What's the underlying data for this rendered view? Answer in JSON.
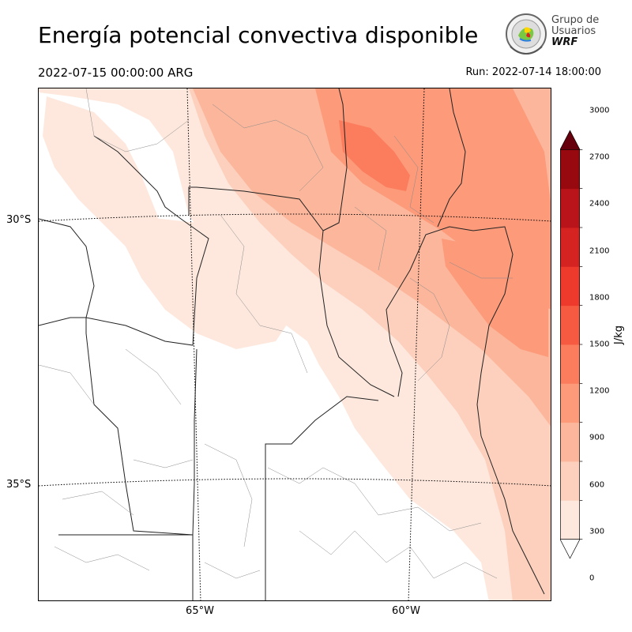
{
  "title": "Energía potencial convectiva disponible",
  "valid_time": "2022-07-15 00:00:00 ARG",
  "run_label": "Run: 2022-07-14 18:00:00",
  "logo": {
    "line1": "Grupo de",
    "line2": "Usuarios",
    "line3": "WRF"
  },
  "axes": {
    "lat_ticks": [
      {
        "label": "30°S",
        "value": -30
      },
      {
        "label": "35°S",
        "value": -35
      }
    ],
    "lon_ticks": [
      {
        "label": "65°W",
        "value": -65
      },
      {
        "label": "60°W",
        "value": -60
      }
    ]
  },
  "colorbar": {
    "unit": "J/kg",
    "ticks": [
      "0",
      "300",
      "600",
      "900",
      "1200",
      "1500",
      "1800",
      "2100",
      "2400",
      "2700",
      "3000"
    ],
    "colors": [
      "#fee8dd",
      "#fcd0bd",
      "#fcb69b",
      "#fc9a7a",
      "#fb7d5d",
      "#f65a40",
      "#ee3a2c",
      "#d52321",
      "#b81419",
      "#97090f"
    ],
    "over_color": "#67000d"
  },
  "colors": {
    "field_levels": [
      "#fee8dd",
      "#fcd0bd",
      "#fcb69b",
      "#fc9a7a",
      "#fb7d5d"
    ]
  }
}
